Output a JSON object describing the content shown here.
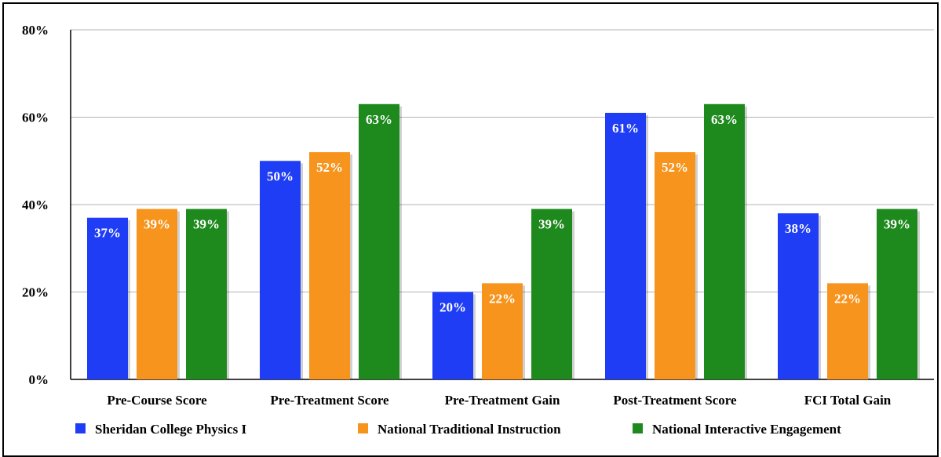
{
  "chart_data": {
    "type": "bar",
    "title": "",
    "xlabel": "",
    "ylabel": "",
    "ylim": [
      0,
      80
    ],
    "y_ticks": [
      "0%",
      "20%",
      "40%",
      "60%",
      "80%"
    ],
    "y_tick_values": [
      0,
      20,
      40,
      60,
      80
    ],
    "grid": "horizontal",
    "legend_position": "bottom",
    "categories": [
      "Pre-Course Score",
      "Pre-Treatment Score",
      "Pre-Treatment Gain",
      "Post-Treatment Score",
      "FCI Total Gain"
    ],
    "series": [
      {
        "name": "Sheridan College Physics I",
        "color": "#1f3df5",
        "values": [
          37,
          50,
          20,
          61,
          38
        ],
        "labels": [
          "37%",
          "50%",
          "20%",
          "61%",
          "38%"
        ]
      },
      {
        "name": "National Traditional Instruction",
        "color": "#f7941d",
        "values": [
          39,
          52,
          22,
          52,
          22
        ],
        "labels": [
          "39%",
          "52%",
          "22%",
          "52%",
          "22%"
        ]
      },
      {
        "name": "National Interactive Engagement",
        "color": "#1e8a1e",
        "values": [
          39,
          63,
          39,
          63,
          39
        ],
        "labels": [
          "39%",
          "63%",
          "39%",
          "63%",
          "39%"
        ]
      }
    ]
  }
}
